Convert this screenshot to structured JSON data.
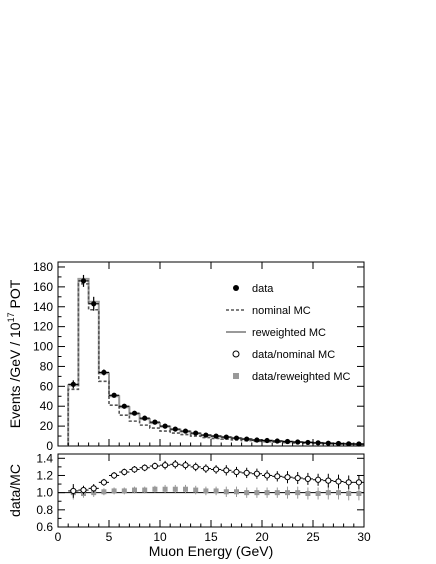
{
  "chart_data": [
    {
      "type": "step",
      "panel": "main",
      "title": "",
      "xlabel": "Muon Energy (GeV)",
      "ylabel": "Events /GeV / 10",
      "ylabel_exponent": "17",
      "ylabel_suffix": " POT",
      "xlim": [
        0,
        30
      ],
      "ylim": [
        0,
        185
      ],
      "xticks": [
        0,
        5,
        10,
        15,
        20,
        25,
        30
      ],
      "yticks": [
        0,
        20,
        40,
        60,
        80,
        100,
        120,
        140,
        160,
        180
      ],
      "grid": false,
      "legend_placement": "right",
      "bin_edges": [
        1,
        2,
        3,
        4,
        5,
        6,
        7,
        8,
        9,
        10,
        11,
        12,
        13,
        14,
        15,
        16,
        17,
        18,
        19,
        20,
        21,
        22,
        23,
        24,
        25,
        26,
        27,
        28,
        29,
        30
      ],
      "series": [
        {
          "name": "data",
          "style": "points",
          "x": [
            1.5,
            2.5,
            3.5,
            4.5,
            5.5,
            6.5,
            7.5,
            8.5,
            9.5,
            10.5,
            11.5,
            12.5,
            13.5,
            14.5,
            15.5,
            16.5,
            17.5,
            18.5,
            19.5,
            20.5,
            21.5,
            22.5,
            23.5,
            24.5,
            25.5,
            26.5,
            27.5,
            28.5,
            29.5
          ],
          "values": [
            62,
            166,
            143,
            74,
            51,
            40,
            33,
            28,
            24,
            20,
            17,
            15,
            13,
            11,
            10,
            9,
            8,
            7,
            6,
            5.5,
            5,
            4.5,
            4,
            3.6,
            3.2,
            2.8,
            2.5,
            2.2,
            2
          ],
          "errors": [
            4,
            6,
            7,
            3,
            2,
            2,
            1.5,
            1.2,
            1,
            1,
            1,
            0.8,
            0.8,
            0.7,
            0.7,
            0.6,
            0.6,
            0.5,
            0.5,
            0.5,
            0.4,
            0.4,
            0.4,
            0.4,
            0.4,
            0.4,
            0.3,
            0.3,
            0.3
          ]
        },
        {
          "name": "nominal MC",
          "style": "dashed-step",
          "values": [
            57,
            163,
            137,
            65,
            41,
            31,
            25,
            21,
            18,
            15,
            13,
            11.5,
            10,
            8.5,
            7.6,
            6.9,
            6.2,
            5.4,
            4.7,
            4.3,
            3.9,
            3.5,
            3.1,
            2.8,
            2.5,
            2.2,
            1.9,
            1.7,
            1.6
          ]
        },
        {
          "name": "reweighted MC",
          "style": "solid-step",
          "values": [
            61,
            168,
            145,
            73,
            50,
            39,
            32,
            27,
            23,
            19.5,
            16.5,
            14.5,
            12.5,
            10.8,
            9.8,
            8.8,
            7.8,
            6.9,
            6,
            5.5,
            5,
            4.5,
            4,
            3.6,
            3.2,
            2.8,
            2.5,
            2.2,
            2
          ]
        },
        {
          "name": "data/nominal MC",
          "style": "open-circle"
        },
        {
          "name": "data/reweighted MC",
          "style": "gray-square"
        }
      ]
    },
    {
      "type": "scatter",
      "panel": "ratio",
      "title": "",
      "xlabel": "Muon Energy (GeV)",
      "ylabel": "data/MC",
      "xlim": [
        0,
        30
      ],
      "ylim": [
        0.6,
        1.45
      ],
      "xticks": [
        0,
        5,
        10,
        15,
        20,
        25,
        30
      ],
      "yticks": [
        0.6,
        0.8,
        1.0,
        1.2,
        1.4
      ],
      "ytick_labels": [
        "0.6",
        "0.8",
        "1.0",
        "1.2",
        "1.4"
      ],
      "reference_line": 1.0,
      "grid": false,
      "series": [
        {
          "name": "data/nominal MC",
          "style": "open-circle",
          "x": [
            1.5,
            2.5,
            3.5,
            4.5,
            5.5,
            6.5,
            7.5,
            8.5,
            9.5,
            10.5,
            11.5,
            12.5,
            13.5,
            14.5,
            15.5,
            16.5,
            17.5,
            18.5,
            19.5,
            20.5,
            21.5,
            22.5,
            23.5,
            24.5,
            25.5,
            26.5,
            27.5,
            28.5,
            29.5
          ],
          "values": [
            1.02,
            1.03,
            1.05,
            1.12,
            1.2,
            1.24,
            1.27,
            1.29,
            1.31,
            1.32,
            1.33,
            1.32,
            1.3,
            1.28,
            1.27,
            1.26,
            1.24,
            1.23,
            1.22,
            1.2,
            1.19,
            1.18,
            1.17,
            1.16,
            1.15,
            1.14,
            1.13,
            1.12,
            1.12
          ],
          "errors": [
            0.08,
            0.05,
            0.05,
            0.04,
            0.04,
            0.04,
            0.04,
            0.04,
            0.04,
            0.05,
            0.05,
            0.05,
            0.05,
            0.05,
            0.05,
            0.06,
            0.06,
            0.06,
            0.06,
            0.06,
            0.06,
            0.07,
            0.07,
            0.07,
            0.07,
            0.08,
            0.08,
            0.08,
            0.08
          ]
        },
        {
          "name": "data/reweighted MC",
          "style": "gray-square",
          "x": [
            1.5,
            2.5,
            3.5,
            4.5,
            5.5,
            6.5,
            7.5,
            8.5,
            9.5,
            10.5,
            11.5,
            12.5,
            13.5,
            14.5,
            15.5,
            16.5,
            17.5,
            18.5,
            19.5,
            20.5,
            21.5,
            22.5,
            23.5,
            24.5,
            25.5,
            26.5,
            27.5,
            28.5,
            29.5
          ],
          "values": [
            1.0,
            0.99,
            1.0,
            1.01,
            1.02,
            1.02,
            1.03,
            1.03,
            1.04,
            1.04,
            1.04,
            1.04,
            1.03,
            1.02,
            1.02,
            1.01,
            1.01,
            1.0,
            1.0,
            1.0,
            1.0,
            1.0,
            1.0,
            0.99,
            0.99,
            1.0,
            1.0,
            0.99,
            0.99
          ],
          "errors": [
            0.08,
            0.05,
            0.05,
            0.04,
            0.04,
            0.04,
            0.04,
            0.04,
            0.04,
            0.05,
            0.05,
            0.05,
            0.05,
            0.05,
            0.05,
            0.06,
            0.06,
            0.06,
            0.06,
            0.06,
            0.06,
            0.07,
            0.07,
            0.07,
            0.07,
            0.08,
            0.08,
            0.08,
            0.08
          ]
        }
      ]
    }
  ]
}
